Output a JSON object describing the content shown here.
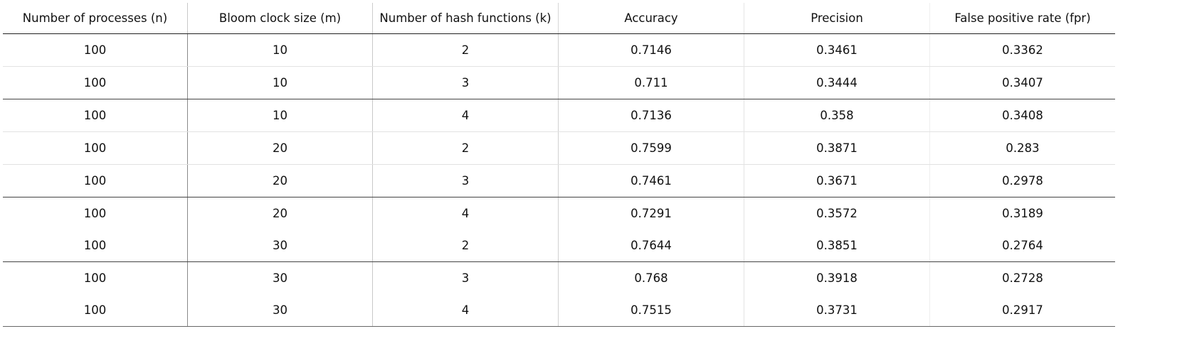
{
  "table": {
    "headers": [
      "Number of processes (n)",
      "Bloom clock size (m)",
      "Number of hash functions (k)",
      "Accuracy",
      "Precision",
      "False positive rate (fpr)"
    ],
    "rows": [
      [
        "100",
        "10",
        "2",
        "0.7146",
        "0.3461",
        "0.3362"
      ],
      [
        "100",
        "10",
        "3",
        "0.711",
        "0.3444",
        "0.3407"
      ],
      [
        "100",
        "10",
        "4",
        "0.7136",
        "0.358",
        "0.3408"
      ],
      [
        "100",
        "20",
        "2",
        "0.7599",
        "0.3871",
        "0.283"
      ],
      [
        "100",
        "20",
        "3",
        "0.7461",
        "0.3671",
        "0.2978"
      ],
      [
        "100",
        "20",
        "4",
        "0.7291",
        "0.3572",
        "0.3189"
      ],
      [
        "100",
        "30",
        "2",
        "0.7644",
        "0.3851",
        "0.2764"
      ],
      [
        "100",
        "30",
        "3",
        "0.768",
        "0.3918",
        "0.2728"
      ],
      [
        "100",
        "30",
        "4",
        "0.7515",
        "0.3731",
        "0.2917"
      ]
    ]
  }
}
